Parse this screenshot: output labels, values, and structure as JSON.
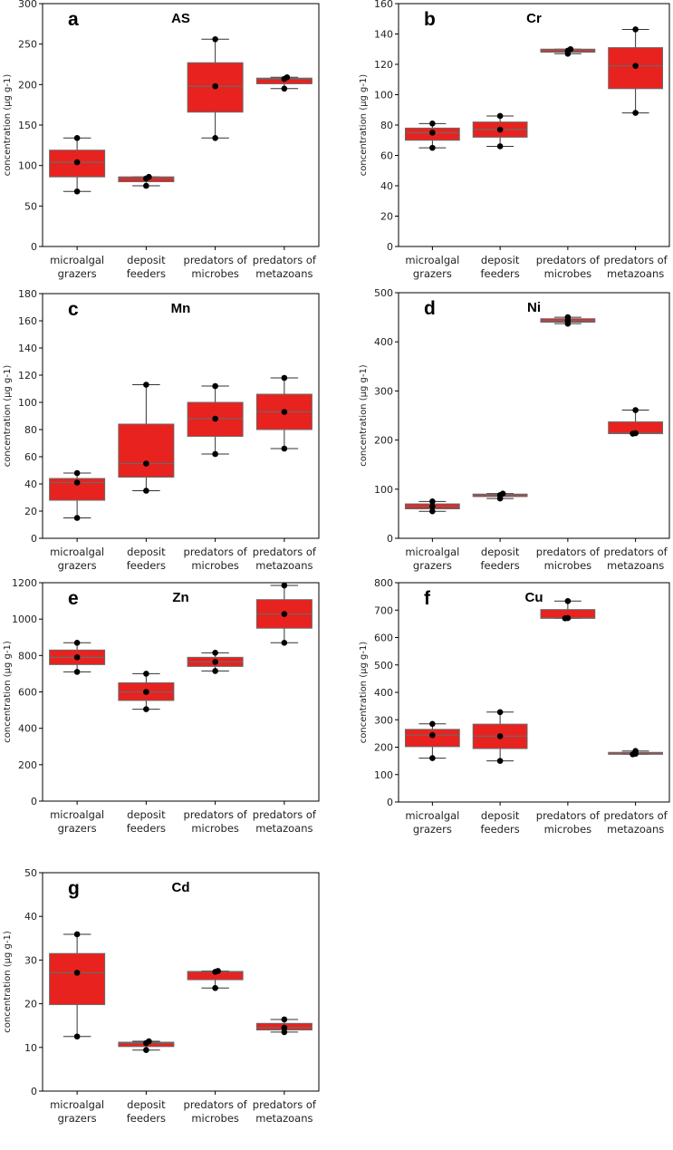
{
  "figure_title": "",
  "chart_data": [
    {
      "type": "box",
      "panel": "a",
      "title": "AS",
      "ylabel": "concentration (µg g-1)",
      "ylim": [
        0,
        300
      ],
      "yticks": [
        "0",
        "50",
        "100",
        "150",
        "200",
        "250",
        "300"
      ],
      "categories": [
        [
          "microalgal",
          "grazers"
        ],
        [
          "deposit",
          "feeders"
        ],
        [
          "predators of",
          "microbes"
        ],
        [
          "predators of",
          "metazoans"
        ]
      ],
      "boxes": [
        {
          "min": 68,
          "q1": 86,
          "median": 104,
          "q3": 119,
          "max": 134,
          "points": [
            68,
            104,
            134
          ]
        },
        {
          "min": 75,
          "q1": 80,
          "median": 84,
          "q3": 86,
          "max": 86,
          "points": [
            75,
            84,
            86
          ]
        },
        {
          "min": 134,
          "q1": 166,
          "median": 198,
          "q3": 227,
          "max": 256,
          "points": [
            134,
            198,
            256
          ]
        },
        {
          "min": 195,
          "q1": 201,
          "median": 207,
          "q3": 208,
          "max": 209,
          "points": [
            195,
            207,
            209
          ]
        }
      ]
    },
    {
      "type": "box",
      "panel": "b",
      "title": "Cr",
      "ylabel": "concentration (µg g-1)",
      "ylim": [
        0,
        160
      ],
      "yticks": [
        "0",
        "20",
        "40",
        "60",
        "80",
        "100",
        "120",
        "140",
        "160"
      ],
      "categories": [
        [
          "microalgal",
          "grazers"
        ],
        [
          "deposit",
          "feeders"
        ],
        [
          "predators of",
          "microbes"
        ],
        [
          "predators of",
          "metazoans"
        ]
      ],
      "boxes": [
        {
          "min": 65,
          "q1": 70,
          "median": 75,
          "q3": 78,
          "max": 81,
          "points": [
            65,
            75,
            81
          ]
        },
        {
          "min": 66,
          "q1": 72,
          "median": 77,
          "q3": 82,
          "max": 86,
          "points": [
            66,
            77,
            86
          ]
        },
        {
          "min": 127,
          "q1": 128,
          "median": 129,
          "q3": 130,
          "max": 130,
          "points": [
            127,
            129,
            130
          ]
        },
        {
          "min": 88,
          "q1": 104,
          "median": 119,
          "q3": 131,
          "max": 143,
          "points": [
            88,
            119,
            143
          ]
        }
      ]
    },
    {
      "type": "box",
      "panel": "c",
      "title": "Mn",
      "ylabel": "concentration (µg g-1)",
      "ylim": [
        0,
        180
      ],
      "yticks": [
        "0",
        "20",
        "40",
        "60",
        "80",
        "100",
        "120",
        "140",
        "160",
        "180"
      ],
      "categories": [
        [
          "microalgal",
          "grazers"
        ],
        [
          "deposit",
          "feeders"
        ],
        [
          "predators of",
          "microbes"
        ],
        [
          "predators of",
          "metazoans"
        ]
      ],
      "boxes": [
        {
          "min": 15,
          "q1": 28,
          "median": 41,
          "q3": 44,
          "max": 48,
          "points": [
            15,
            41,
            48
          ]
        },
        {
          "min": 35,
          "q1": 45,
          "median": 55,
          "q3": 84,
          "max": 113,
          "points": [
            35,
            55,
            113
          ]
        },
        {
          "min": 62,
          "q1": 75,
          "median": 88,
          "q3": 100,
          "max": 112,
          "points": [
            62,
            88,
            112
          ]
        },
        {
          "min": 66,
          "q1": 80,
          "median": 93,
          "q3": 106,
          "max": 118,
          "points": [
            66,
            93,
            118
          ]
        }
      ]
    },
    {
      "type": "box",
      "panel": "d",
      "title": "Ni",
      "ylabel": "concentration (µg g-1)",
      "ylim": [
        0,
        500
      ],
      "yticks": [
        "0",
        "100",
        "200",
        "300",
        "400",
        "500"
      ],
      "categories": [
        [
          "microalgal",
          "grazers"
        ],
        [
          "deposit",
          "feeders"
        ],
        [
          "predators of",
          "microbes"
        ],
        [
          "predators of",
          "metazoans"
        ]
      ],
      "boxes": [
        {
          "min": 55,
          "q1": 60,
          "median": 65,
          "q3": 70,
          "max": 75,
          "points": [
            55,
            65,
            75
          ]
        },
        {
          "min": 81,
          "q1": 85,
          "median": 88,
          "q3": 90,
          "max": 91,
          "points": [
            81,
            88,
            91
          ]
        },
        {
          "min": 437,
          "q1": 440,
          "median": 443,
          "q3": 447,
          "max": 450,
          "points": [
            437,
            443,
            450
          ]
        },
        {
          "min": 213,
          "q1": 213,
          "median": 214,
          "q3": 237,
          "max": 261,
          "points": [
            213,
            214,
            261
          ]
        }
      ]
    },
    {
      "type": "box",
      "panel": "e",
      "title": "Zn",
      "ylabel": "concentration (µg g-1)",
      "ylim": [
        0,
        1200
      ],
      "yticks": [
        "0",
        "200",
        "400",
        "600",
        "800",
        "1000",
        "1200"
      ],
      "categories": [
        [
          "microalgal",
          "grazers"
        ],
        [
          "deposit",
          "feeders"
        ],
        [
          "predators of",
          "microbes"
        ],
        [
          "predators of",
          "metazoans"
        ]
      ],
      "boxes": [
        {
          "min": 710,
          "q1": 750,
          "median": 790,
          "q3": 830,
          "max": 870,
          "points": [
            710,
            790,
            870
          ]
        },
        {
          "min": 505,
          "q1": 553,
          "median": 600,
          "q3": 650,
          "max": 700,
          "points": [
            505,
            600,
            700
          ]
        },
        {
          "min": 715,
          "q1": 740,
          "median": 765,
          "q3": 790,
          "max": 815,
          "points": [
            715,
            765,
            815
          ]
        },
        {
          "min": 870,
          "q1": 950,
          "median": 1028,
          "q3": 1107,
          "max": 1185,
          "points": [
            870,
            1028,
            1185
          ]
        }
      ]
    },
    {
      "type": "box",
      "panel": "f",
      "title": "Cu",
      "ylabel": "concentration (µg g-1)",
      "ylim": [
        0,
        800
      ],
      "yticks": [
        "0",
        "100",
        "200",
        "300",
        "400",
        "500",
        "600",
        "700",
        "800"
      ],
      "categories": [
        [
          "microalgal",
          "grazers"
        ],
        [
          "deposit",
          "feeders"
        ],
        [
          "predators of",
          "microbes"
        ],
        [
          "predators of",
          "metazoans"
        ]
      ],
      "boxes": [
        {
          "min": 160,
          "q1": 202,
          "median": 244,
          "q3": 265,
          "max": 285,
          "points": [
            160,
            244,
            285
          ]
        },
        {
          "min": 150,
          "q1": 195,
          "median": 240,
          "q3": 284,
          "max": 328,
          "points": [
            150,
            240,
            328
          ]
        },
        {
          "min": 670,
          "q1": 670,
          "median": 671,
          "q3": 702,
          "max": 733,
          "points": [
            670,
            671,
            733
          ]
        },
        {
          "min": 174,
          "q1": 174,
          "median": 176,
          "q3": 181,
          "max": 186,
          "points": [
            174,
            176,
            186
          ]
        }
      ]
    },
    {
      "type": "box",
      "panel": "g",
      "title": "Cd",
      "ylabel": "concentration (µg g-1)",
      "ylim": [
        0,
        50
      ],
      "yticks": [
        "0",
        "10",
        "20",
        "30",
        "40",
        "50"
      ],
      "categories": [
        [
          "microalgal",
          "grazers"
        ],
        [
          "deposit",
          "feeders"
        ],
        [
          "predators of",
          "microbes"
        ],
        [
          "predators of",
          "metazoans"
        ]
      ],
      "boxes": [
        {
          "min": 12.5,
          "q1": 19.8,
          "median": 27.1,
          "q3": 31.5,
          "max": 35.9,
          "points": [
            12.5,
            27.1,
            35.9
          ]
        },
        {
          "min": 9.4,
          "q1": 10.2,
          "median": 11.0,
          "q3": 11.2,
          "max": 11.4,
          "points": [
            9.4,
            11.0,
            11.4
          ]
        },
        {
          "min": 23.6,
          "q1": 25.5,
          "median": 27.3,
          "q3": 27.4,
          "max": 27.5,
          "points": [
            23.6,
            27.3,
            27.5
          ]
        },
        {
          "min": 13.5,
          "q1": 14.0,
          "median": 14.5,
          "q3": 15.5,
          "max": 16.4,
          "points": [
            13.5,
            14.5,
            16.4
          ]
        }
      ]
    }
  ],
  "colors": {
    "box_fill": "#e8221e",
    "box_edge": "#6a6a6a",
    "point": "#000000"
  }
}
